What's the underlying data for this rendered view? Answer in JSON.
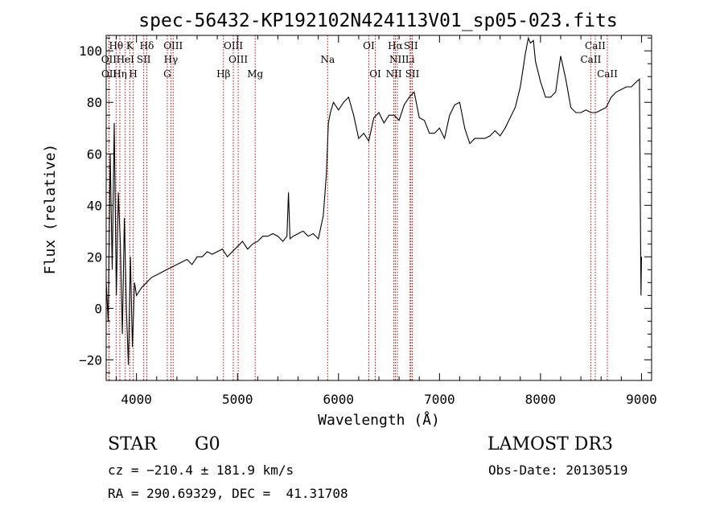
{
  "chart_data": {
    "type": "line",
    "title": "spec-56432-KP192102N424113V01_sp05-023.fits",
    "xlabel": "Wavelength (Å)",
    "ylabel": "Flux (relative)",
    "xlim": [
      3700,
      9100
    ],
    "ylim": [
      -28,
      106
    ],
    "xticks": [
      4000,
      5000,
      6000,
      7000,
      8000,
      9000
    ],
    "yticks": [
      -20,
      0,
      20,
      40,
      60,
      80,
      100
    ],
    "grid": false,
    "series": [
      {
        "name": "flux",
        "x": [
          3700,
          3720,
          3740,
          3760,
          3780,
          3800,
          3820,
          3840,
          3860,
          3880,
          3900,
          3920,
          3940,
          3960,
          3980,
          4000,
          4050,
          4100,
          4150,
          4200,
          4250,
          4300,
          4350,
          4400,
          4450,
          4500,
          4550,
          4600,
          4650,
          4700,
          4750,
          4800,
          4850,
          4900,
          4950,
          5000,
          5050,
          5100,
          5150,
          5200,
          5250,
          5300,
          5350,
          5400,
          5450,
          5490,
          5505,
          5520,
          5550,
          5600,
          5650,
          5700,
          5750,
          5800,
          5850,
          5880,
          5900,
          5920,
          5950,
          6000,
          6050,
          6100,
          6150,
          6200,
          6250,
          6300,
          6350,
          6400,
          6450,
          6500,
          6550,
          6600,
          6650,
          6700,
          6750,
          6800,
          6850,
          6900,
          6950,
          7000,
          7050,
          7100,
          7150,
          7200,
          7250,
          7300,
          7350,
          7400,
          7450,
          7500,
          7550,
          7600,
          7650,
          7700,
          7750,
          7800,
          7850,
          7880,
          7900,
          7930,
          7950,
          8000,
          8050,
          8100,
          8150,
          8200,
          8250,
          8300,
          8350,
          8400,
          8450,
          8500,
          8550,
          8600,
          8650,
          8700,
          8750,
          8800,
          8850,
          8900,
          8950,
          8980,
          8995,
          9000
        ],
        "y": [
          10,
          -5,
          60,
          15,
          72,
          5,
          45,
          25,
          -10,
          35,
          0,
          -22,
          20,
          -15,
          10,
          5,
          8,
          10,
          12,
          13,
          14,
          15,
          16,
          17,
          18,
          19,
          17,
          20,
          20,
          22,
          21,
          22,
          23,
          20,
          22,
          24,
          26,
          23,
          25,
          26,
          28,
          28,
          29,
          28,
          26,
          28,
          45,
          27,
          28,
          29,
          30,
          28,
          29,
          27,
          36,
          52,
          72,
          76,
          80,
          77,
          80,
          82,
          75,
          66,
          68,
          65,
          74,
          76,
          72,
          75,
          75,
          73,
          79,
          82,
          84,
          74,
          73,
          68,
          68,
          70,
          66,
          75,
          79,
          80,
          70,
          64,
          66,
          66,
          66,
          67,
          69,
          67,
          70,
          74,
          78,
          86,
          99,
          105,
          103,
          104,
          96,
          88,
          82,
          82,
          84,
          98,
          89,
          78,
          76,
          76,
          77,
          76,
          76,
          77,
          78,
          82,
          84,
          85,
          86,
          86,
          88,
          89,
          5,
          20
        ]
      }
    ],
    "lines": [
      {
        "label": "Hθ",
        "lambda": 3798,
        "row": 1
      },
      {
        "label": "K",
        "lambda": 3934,
        "row": 1
      },
      {
        "label": "Hδ",
        "lambda": 4102,
        "row": 1
      },
      {
        "label": "OIII",
        "lambda": 4363,
        "row": 1
      },
      {
        "label": "OIII",
        "lambda": 4959,
        "row": 1
      },
      {
        "label": "OI",
        "lambda": 6300,
        "row": 1
      },
      {
        "label": "Hα",
        "lambda": 6563,
        "row": 1
      },
      {
        "label": "SII",
        "lambda": 6717,
        "row": 1
      },
      {
        "label": "CaII",
        "lambda": 8542,
        "row": 1
      },
      {
        "label": "OII",
        "lambda": 3727,
        "row": 2
      },
      {
        "label": "HeI",
        "lambda": 3889,
        "row": 2
      },
      {
        "label": "SII",
        "lambda": 4072,
        "row": 2
      },
      {
        "label": "Hγ",
        "lambda": 4341,
        "row": 2
      },
      {
        "label": "OIII",
        "lambda": 5007,
        "row": 2
      },
      {
        "label": "Na",
        "lambda": 5893,
        "row": 2
      },
      {
        "label": "NII",
        "lambda": 6583,
        "row": 2
      },
      {
        "label": "Li",
        "lambda": 6708,
        "row": 2
      },
      {
        "label": "CaII",
        "lambda": 8498,
        "row": 2
      },
      {
        "label": "OII",
        "lambda": 3729,
        "row": 3
      },
      {
        "label": "Hη",
        "lambda": 3835,
        "row": 3
      },
      {
        "label": "H",
        "lambda": 3968,
        "row": 3
      },
      {
        "label": "G",
        "lambda": 4305,
        "row": 3
      },
      {
        "label": "Hβ",
        "lambda": 4861,
        "row": 3
      },
      {
        "label": "Mg",
        "lambda": 5175,
        "row": 3
      },
      {
        "label": "OI",
        "lambda": 6364,
        "row": 3
      },
      {
        "label": "NII",
        "lambda": 6548,
        "row": 3
      },
      {
        "label": "SII",
        "lambda": 6731,
        "row": 3
      },
      {
        "label": "CaII",
        "lambda": 8662,
        "row": 3
      }
    ]
  },
  "info": {
    "class_label": "STAR",
    "subclass": "G0",
    "survey": "LAMOST DR3",
    "cz": "cz = −210.4 ± 181.9 km/s",
    "obs_date": "Obs-Date: 20130519",
    "coords": "RA = 290.69329, DEC =  41.31708"
  },
  "colors": {
    "line_marker": "#cc0000",
    "spectrum": "#000000"
  }
}
